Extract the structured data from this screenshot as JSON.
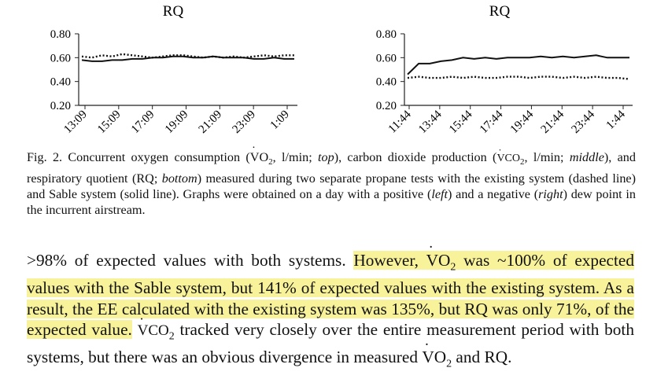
{
  "chart_data": [
    {
      "type": "line",
      "title": "RQ",
      "ylim": [
        0.2,
        0.8
      ],
      "yticks": [
        "0.80",
        "0.60",
        "0.40",
        "0.20"
      ],
      "xticks": [
        "13:09",
        "15:09",
        "17:09",
        "19:09",
        "21:09",
        "23:09",
        "1:09"
      ],
      "series": [
        {
          "style": "dashed",
          "values": [
            0.61,
            0.6,
            0.62,
            0.61,
            0.63,
            0.62,
            0.61,
            0.6,
            0.61,
            0.62,
            0.62,
            0.61,
            0.6,
            0.61,
            0.6,
            0.61,
            0.6,
            0.61,
            0.62,
            0.61,
            0.62,
            0.62
          ]
        },
        {
          "style": "solid",
          "values": [
            0.58,
            0.57,
            0.57,
            0.58,
            0.58,
            0.59,
            0.59,
            0.6,
            0.6,
            0.61,
            0.61,
            0.6,
            0.6,
            0.61,
            0.6,
            0.6,
            0.6,
            0.59,
            0.59,
            0.6,
            0.59,
            0.59
          ]
        }
      ]
    },
    {
      "type": "line",
      "title": "RQ",
      "ylim": [
        0.2,
        0.8
      ],
      "yticks": [
        "0.80",
        "0.60",
        "0.40",
        "0.20"
      ],
      "xticks": [
        "11:44",
        "13:44",
        "15:44",
        "17:44",
        "19:44",
        "21:44",
        "23:44",
        "1:44"
      ],
      "series": [
        {
          "style": "dashed",
          "values": [
            0.43,
            0.44,
            0.43,
            0.43,
            0.44,
            0.43,
            0.44,
            0.43,
            0.43,
            0.44,
            0.44,
            0.43,
            0.44,
            0.44,
            0.43,
            0.44,
            0.43,
            0.44,
            0.43,
            0.43,
            0.42
          ]
        },
        {
          "style": "solid",
          "values": [
            0.46,
            0.55,
            0.55,
            0.57,
            0.58,
            0.6,
            0.59,
            0.6,
            0.59,
            0.6,
            0.6,
            0.6,
            0.61,
            0.6,
            0.61,
            0.6,
            0.61,
            0.62,
            0.6,
            0.6,
            0.6
          ]
        }
      ]
    }
  ],
  "caption": {
    "p1": "Fig. 2. Concurrent oxygen consumption (",
    "vo2_a": "VO",
    "sub2": "2",
    "p2": ", l/min; ",
    "top": "top",
    "p3": "), carbon dioxide production (",
    "vco2_a": "VCO",
    "p4": ", l/min; ",
    "middle": "middle",
    "p5": "), and respiratory quotient (RQ; ",
    "bottom": "bottom",
    "p6": ") measured during two separate propane tests with the existing system (dashed line) and Sable system (solid line). Graphs were obtained on a day with a positive (",
    "left": "left",
    "p7": ") and a negative (",
    "right": "right",
    "p8": ") dew point in the incurrent airstream."
  },
  "body": {
    "t1": ">98% of expected values with both systems. ",
    "h1a": "However, ",
    "vo2": "VO",
    "h1b": " was ~100% of expected values with the Sable system, but 141% of expected values with the existing system. As a result, the EE calculated with the existing system was 135%, but RQ was only 71%, of the expected value.",
    "t2": " ",
    "vco2": "VCO",
    "t3": " tracked very closely over the entire measurement period with both systems, but there was an obvious divergence in measured ",
    "vo2b": "VO",
    "t4": " and RQ."
  }
}
